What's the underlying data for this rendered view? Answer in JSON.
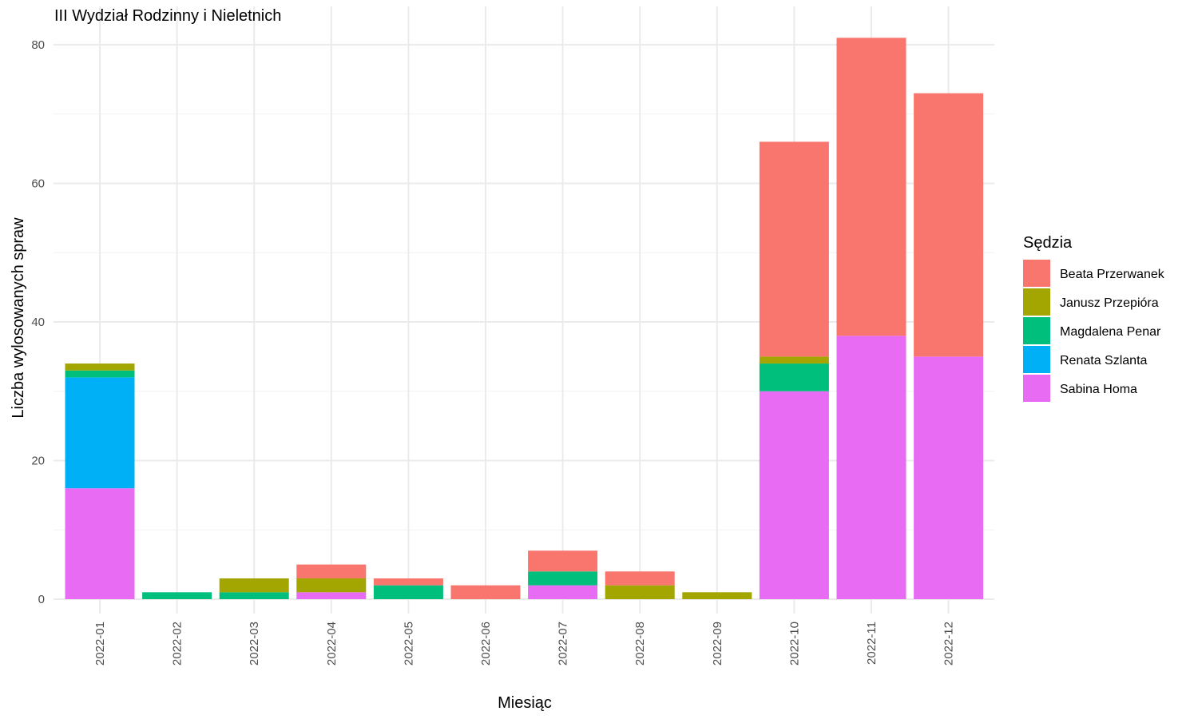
{
  "chart_data": {
    "type": "bar",
    "stacked": true,
    "title": "III Wydział Rodzinny i Nieletnich",
    "xlabel": "Miesiąc",
    "ylabel": "Liczba wylosowanych spraw",
    "ylim": [
      0,
      85
    ],
    "yticks": [
      0,
      20,
      40,
      60,
      80
    ],
    "grid": true,
    "legend_title": "Sędzia",
    "legend_position": "right",
    "categories": [
      "2022-01",
      "2022-02",
      "2022-03",
      "2022-04",
      "2022-05",
      "2022-06",
      "2022-07",
      "2022-08",
      "2022-09",
      "2022-10",
      "2022-11",
      "2022-12"
    ],
    "series": [
      {
        "name": "Beata Przerwanek",
        "color": "#F8766D",
        "values": [
          0,
          0,
          0,
          2,
          1,
          2,
          3,
          2,
          0,
          31,
          43,
          38
        ]
      },
      {
        "name": "Janusz Przepióra",
        "color": "#A3A500",
        "values": [
          1,
          0,
          2,
          2,
          0,
          0,
          0,
          2,
          1,
          1,
          0,
          0
        ]
      },
      {
        "name": "Magdalena Penar",
        "color": "#00BF7D",
        "values": [
          1,
          1,
          1,
          0,
          2,
          0,
          2,
          0,
          0,
          4,
          0,
          0
        ]
      },
      {
        "name": "Renata Szlanta",
        "color": "#00B0F6",
        "values": [
          16,
          0,
          0,
          0,
          0,
          0,
          0,
          0,
          0,
          0,
          0,
          0
        ]
      },
      {
        "name": "Sabina Homa",
        "color": "#E76BF3",
        "values": [
          16,
          0,
          0,
          1,
          0,
          0,
          2,
          0,
          0,
          30,
          38,
          35
        ]
      }
    ]
  }
}
